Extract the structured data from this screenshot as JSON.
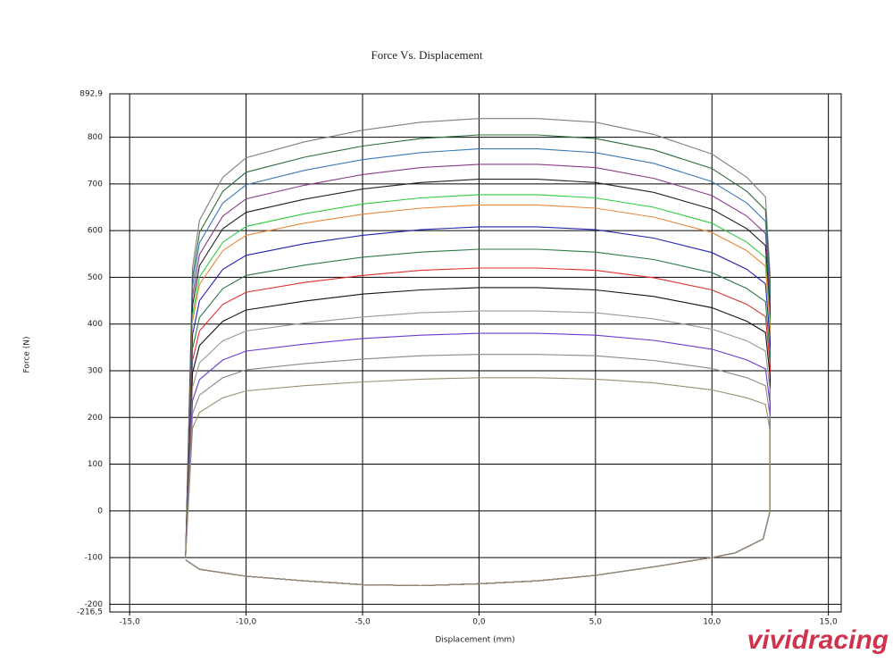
{
  "chart_data": {
    "type": "line",
    "title": "Force Vs. Displacement",
    "x_label": "Displacement (mm)",
    "y_label": "Force (N)",
    "watermark": "vividracing",
    "xlim": [
      -15.85,
      15.55
    ],
    "ylim": [
      -216.5,
      892.9
    ],
    "xticks": [
      {
        "value": -15,
        "label": "-15,0"
      },
      {
        "value": -10,
        "label": "-10,0"
      },
      {
        "value": -5,
        "label": "-5,0"
      },
      {
        "value": 0,
        "label": "0,0"
      },
      {
        "value": 5,
        "label": "5,0"
      },
      {
        "value": 10,
        "label": "10,0"
      },
      {
        "value": 15,
        "label": "15,0"
      }
    ],
    "yticks": [
      {
        "value": -216.5,
        "label": "-216,5"
      },
      -200,
      -100,
      0,
      100,
      200,
      300,
      400,
      500,
      600,
      700,
      800,
      {
        "value": 892.9,
        "label": "892,9"
      }
    ],
    "grid": true,
    "x": [
      -12.6,
      -12.3,
      -12.0,
      -11.0,
      -10.0,
      -7.5,
      -5.0,
      -2.5,
      0,
      2.5,
      5.0,
      7.5,
      10.0,
      11.5,
      12.3,
      12.5,
      12.5,
      12.2,
      11.0,
      10.0,
      7.5,
      5.0,
      2.5,
      0,
      -2.5,
      -5.0,
      -7.5,
      -10.0,
      -12.0,
      -12.6
    ],
    "series": [
      {
        "color": "#7f7f7f",
        "values": [
          -100,
          521,
          622,
          714,
          756,
          790,
          815,
          832,
          840,
          840,
          832,
          806,
          764,
          714,
          672,
          504,
          0,
          -60,
          -90,
          -100,
          -120,
          -138,
          -150,
          -156,
          -160,
          -158,
          -150,
          -140,
          -125,
          -105
        ]
      },
      {
        "color": "#2e6b3a",
        "values": [
          -100,
          499,
          596,
          684,
          725,
          757,
          781,
          797,
          805,
          805,
          797,
          773,
          733,
          684,
          644,
          483,
          0,
          -60,
          -90,
          -100,
          -120,
          -138,
          -150,
          -156,
          -160,
          -158,
          -150,
          -140,
          -125,
          -105
        ]
      },
      {
        "color": "#3a7ab5",
        "values": [
          -100,
          481,
          574,
          659,
          698,
          729,
          752,
          767,
          775,
          775,
          767,
          744,
          705,
          659,
          620,
          465,
          0,
          -60,
          -90,
          -100,
          -120,
          -138,
          -150,
          -156,
          -160,
          -158,
          -150,
          -140,
          -125,
          -105
        ]
      },
      {
        "color": "#8a3a8a",
        "values": [
          -100,
          460,
          549,
          631,
          668,
          697,
          720,
          735,
          742,
          742,
          735,
          712,
          675,
          631,
          594,
          445,
          0,
          -60,
          -90,
          -100,
          -120,
          -138,
          -150,
          -156,
          -160,
          -158,
          -150,
          -140,
          -125,
          -105
        ]
      },
      {
        "color": "#222222",
        "values": [
          -100,
          440,
          525,
          604,
          639,
          667,
          689,
          703,
          710,
          710,
          703,
          682,
          646,
          604,
          568,
          426,
          0,
          -60,
          -90,
          -100,
          -120,
          -138,
          -150,
          -156,
          -160,
          -158,
          -150,
          -140,
          -125,
          -105
        ]
      },
      {
        "color": "#2ecc40",
        "values": [
          -100,
          420,
          501,
          575,
          609,
          636,
          657,
          670,
          677,
          677,
          670,
          650,
          616,
          575,
          542,
          406,
          0,
          -60,
          -90,
          -100,
          -120,
          -138,
          -150,
          -156,
          -160,
          -158,
          -150,
          -140,
          -125,
          -105
        ]
      },
      {
        "color": "#e8883a",
        "values": [
          -100,
          406,
          485,
          557,
          590,
          616,
          635,
          648,
          655,
          655,
          648,
          629,
          596,
          557,
          524,
          393,
          0,
          -60,
          -90,
          -100,
          -120,
          -138,
          -150,
          -156,
          -160,
          -158,
          -150,
          -140,
          -125,
          -105
        ]
      },
      {
        "color": "#2323b0",
        "values": [
          -100,
          377,
          450,
          517,
          547,
          572,
          590,
          602,
          608,
          608,
          602,
          584,
          553,
          517,
          486,
          365,
          0,
          -60,
          -90,
          -100,
          -120,
          -138,
          -150,
          -156,
          -160,
          -158,
          -150,
          -140,
          -125,
          -105
        ]
      },
      {
        "color": "#2d7a4a",
        "values": [
          -100,
          347,
          414,
          476,
          504,
          526,
          543,
          554,
          560,
          560,
          554,
          538,
          510,
          476,
          448,
          336,
          0,
          -60,
          -90,
          -100,
          -120,
          -138,
          -150,
          -156,
          -160,
          -158,
          -150,
          -140,
          -125,
          -105
        ]
      },
      {
        "color": "#e03030",
        "values": [
          -100,
          322,
          385,
          442,
          468,
          489,
          504,
          515,
          520,
          520,
          515,
          499,
          473,
          442,
          416,
          312,
          0,
          -60,
          -90,
          -100,
          -120,
          -138,
          -150,
          -156,
          -160,
          -158,
          -150,
          -140,
          -125,
          -105
        ]
      },
      {
        "color": "#111111",
        "values": [
          -100,
          296,
          354,
          406,
          430,
          449,
          464,
          473,
          478,
          478,
          473,
          459,
          435,
          406,
          382,
          287,
          0,
          -60,
          -90,
          -100,
          -120,
          -138,
          -150,
          -156,
          -160,
          -158,
          -150,
          -140,
          -125,
          -105
        ]
      },
      {
        "color": "#999999",
        "values": [
          -100,
          265,
          317,
          364,
          385,
          402,
          415,
          424,
          428,
          428,
          424,
          411,
          389,
          364,
          342,
          257,
          0,
          -60,
          -90,
          -100,
          -120,
          -138,
          -150,
          -156,
          -160,
          -158,
          -150,
          -140,
          -125,
          -105
        ]
      },
      {
        "color": "#6a3ad0",
        "values": [
          -100,
          236,
          281,
          323,
          342,
          357,
          369,
          376,
          380,
          380,
          376,
          365,
          346,
          323,
          304,
          228,
          0,
          -60,
          -90,
          -100,
          -120,
          -138,
          -150,
          -156,
          -160,
          -158,
          -150,
          -140,
          -125,
          -105
        ]
      },
      {
        "color": "#888888",
        "values": [
          -100,
          208,
          248,
          285,
          302,
          315,
          325,
          332,
          335,
          335,
          332,
          322,
          305,
          285,
          268,
          201,
          0,
          -60,
          -90,
          -100,
          -120,
          -138,
          -150,
          -156,
          -160,
          -158,
          -150,
          -140,
          -125,
          -105
        ]
      },
      {
        "color": "#9a9070",
        "values": [
          -100,
          177,
          211,
          242,
          257,
          268,
          276,
          282,
          285,
          285,
          282,
          274,
          259,
          242,
          228,
          171,
          0,
          -60,
          -90,
          -100,
          -120,
          -138,
          -150,
          -156,
          -160,
          -158,
          -150,
          -140,
          -125,
          -105
        ]
      }
    ]
  }
}
